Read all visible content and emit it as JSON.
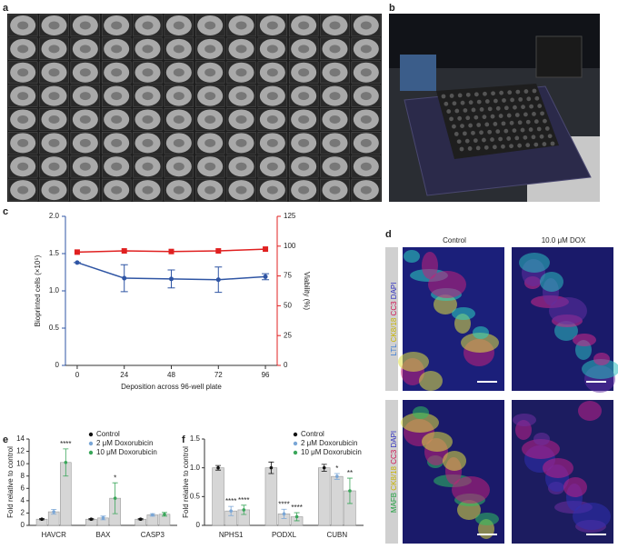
{
  "panel_labels": [
    "a",
    "b",
    "c",
    "d",
    "e",
    "f"
  ],
  "panel_d": {
    "columns": [
      "Control",
      "10.0 μM DOX"
    ],
    "rows": [
      [
        "LTL",
        "CK8/18",
        "CC3",
        "DAPI"
      ],
      [
        "MAFB",
        "CK8/18",
        "CC3",
        "DAPI"
      ]
    ]
  },
  "chart_data": [
    {
      "type": "line",
      "xlabel": "Deposition across 96-well plate",
      "ylabel": "Bioprinted cells (×10⁵)",
      "y2label": "Viability (%)",
      "x": [
        0,
        24,
        48,
        72,
        96
      ],
      "xlim": [
        -6,
        102
      ],
      "xticks": [
        0,
        24,
        48,
        72,
        96
      ],
      "ylim": [
        0,
        2
      ],
      "yticks": [
        0,
        0.5,
        {
          "value": 1,
          "label": "1.0"
        },
        1.5,
        {
          "value": 2,
          "label": "2.0"
        }
      ],
      "y2lim": [
        0,
        125
      ],
      "y2ticks": [
        0,
        25,
        50,
        75,
        100,
        125
      ],
      "series": [
        {
          "color": "#2f55a4",
          "values": [
            1.38,
            1.17,
            1.16,
            1.15,
            1.19
          ],
          "errors": [
            0,
            0.18,
            0.12,
            0.17,
            0.04
          ]
        },
        {
          "color": "#e02020",
          "axis": "y2",
          "values": [
            95,
            96,
            95.5,
            96,
            97.5
          ]
        }
      ]
    },
    {
      "type": "bar",
      "ylabel": "Fold relative to control",
      "categories": [
        "HAVCR",
        "BAX",
        "CASP3"
      ],
      "ylim": [
        0,
        14
      ],
      "yticks": [
        0,
        2,
        4,
        6,
        8,
        10,
        12,
        14
      ],
      "series": [
        {
          "name": "Control",
          "color": "#111111",
          "values": [
            1,
            1,
            1
          ],
          "errors": [
            0.1,
            0.1,
            0.1
          ],
          "significance": [
            null,
            null,
            null
          ]
        },
        {
          "name": "2 μM Doxorubicin",
          "color": "#7aa6d6",
          "values": [
            2.2,
            1.2,
            1.7
          ],
          "errors": [
            0.4,
            0.3,
            0.2
          ],
          "significance": [
            null,
            null,
            null
          ]
        },
        {
          "name": "10 μM Doxorubicin",
          "color": "#3aa65a",
          "values": [
            10.2,
            4.4,
            1.8
          ],
          "errors": [
            2.2,
            2.5,
            0.3
          ],
          "significance": [
            "****",
            "*",
            null
          ]
        }
      ]
    },
    {
      "type": "bar",
      "ylabel": "Fold relative to control",
      "categories": [
        "NPHS1",
        "PODXL",
        "CUBN"
      ],
      "ylim": [
        0,
        1.5
      ],
      "yticks": [
        0,
        0.5,
        {
          "value": 1,
          "label": "1.0"
        },
        1.5
      ],
      "series": [
        {
          "name": "Control",
          "color": "#111111",
          "values": [
            1,
            1,
            1
          ],
          "errors": [
            0.04,
            0.1,
            0.06
          ],
          "significance": [
            null,
            null,
            null
          ]
        },
        {
          "name": "2 μM Doxorubicin",
          "color": "#7aa6d6",
          "values": [
            0.25,
            0.2,
            0.85
          ],
          "errors": [
            0.08,
            0.08,
            0.05
          ],
          "significance": [
            "****",
            "****",
            "*"
          ]
        },
        {
          "name": "10 μM Doxorubicin",
          "color": "#3aa65a",
          "values": [
            0.27,
            0.15,
            0.6
          ],
          "errors": [
            0.08,
            0.07,
            0.22
          ],
          "significance": [
            "****",
            "****",
            "**"
          ]
        }
      ]
    }
  ]
}
